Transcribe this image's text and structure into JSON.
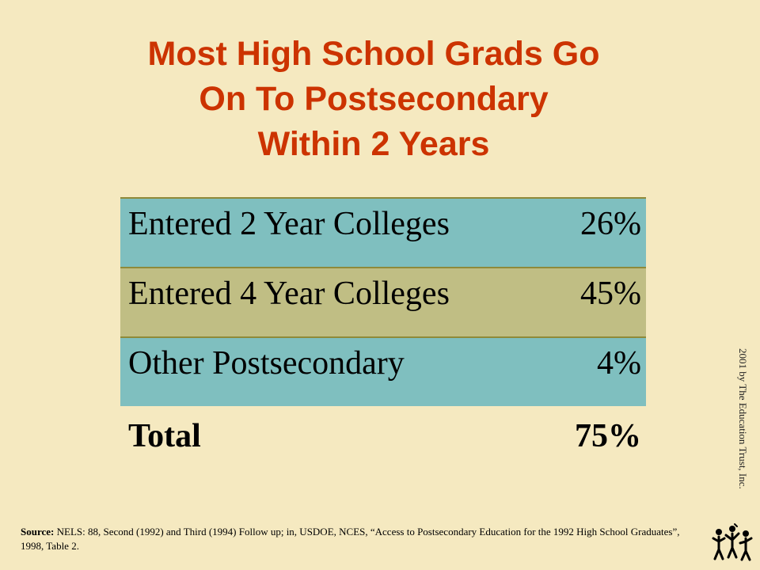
{
  "title": {
    "line1": "Most High School Grads Go",
    "line2": "On To Postsecondary",
    "line3": "Within 2 Years"
  },
  "table": {
    "rows": [
      {
        "label": "Entered 2 Year Colleges",
        "value": "26%"
      },
      {
        "label": "Entered 4 Year Colleges",
        "value": "45%"
      },
      {
        "label": "Other Postsecondary",
        "value": "4%"
      }
    ],
    "total": {
      "label": "Total",
      "value": "75%"
    }
  },
  "credit": "2001 by The Education Trust, Inc.",
  "source": {
    "prefix": "Source:",
    "text": "NELS: 88, Second (1992) and Third (1994) Follow up; in, USDOE, NCES, “Access to Postsecondary Education for the 1992 High School Graduates”, 1998, Table 2."
  },
  "colors": {
    "background": "#f5e9c0",
    "title": "#cc3300",
    "row_blue": "#7fbfbf",
    "row_olive": "#c0be84"
  },
  "icons": {
    "logo": "education-trust-logo-icon"
  }
}
